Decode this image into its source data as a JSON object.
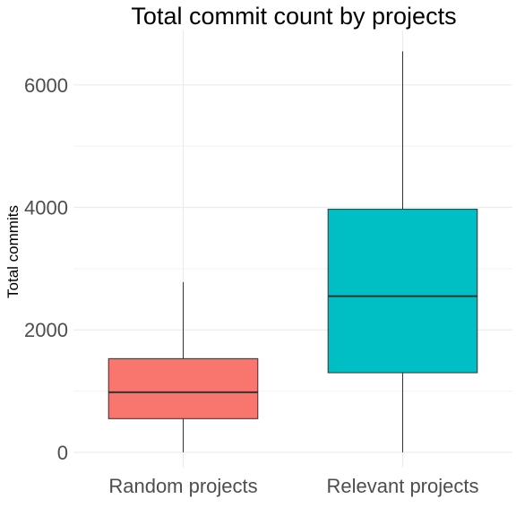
{
  "chart_data": {
    "type": "boxplot",
    "title": "Total commit count by projects",
    "xlabel": "",
    "ylabel": "Total commits",
    "categories": [
      "Random projects",
      "Relevant projects"
    ],
    "colors": [
      "#F8766D",
      "#00BFC4"
    ],
    "boxes": [
      {
        "category": "Random projects",
        "min": 0,
        "q1": 550,
        "median": 980,
        "q3": 1530,
        "max": 2780
      },
      {
        "category": "Relevant projects",
        "min": 0,
        "q1": 1300,
        "median": 2550,
        "q3": 3970,
        "max": 6550
      }
    ],
    "y_ticks": [
      0,
      2000,
      4000,
      6000
    ],
    "y_tick_labels": [
      "0",
      "2000",
      "4000",
      "6000"
    ],
    "ylim": [
      -250,
      6890
    ],
    "grid": true,
    "legend": "none"
  }
}
